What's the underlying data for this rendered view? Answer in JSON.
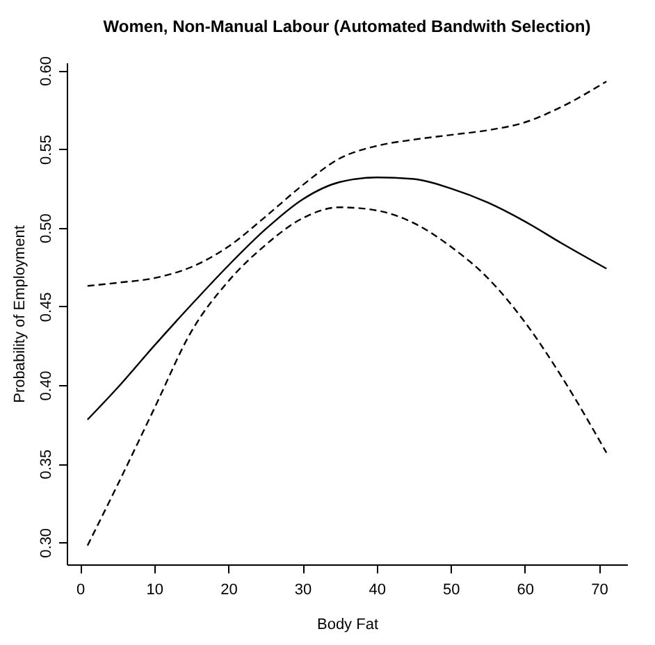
{
  "chart_data": {
    "type": "line",
    "title": "Women, Non-Manual Labour (Automated Bandwith Selection)",
    "xlabel": "Body Fat",
    "ylabel": "Probability of Employment",
    "x": [
      1,
      5,
      10,
      15,
      20,
      25,
      30,
      35,
      40,
      45,
      50,
      55,
      60,
      65,
      71
    ],
    "series": [
      {
        "color": "#000000",
        "line_style": "solid",
        "values": [
          0.378,
          0.398,
          0.425,
          0.451,
          0.476,
          0.499,
          0.518,
          0.529,
          0.532,
          0.531,
          0.525,
          0.516,
          0.504,
          0.49,
          0.474
        ]
      },
      {
        "color": "#000000",
        "line_style": "dashed",
        "values": [
          0.463,
          0.465,
          0.468,
          0.475,
          0.488,
          0.507,
          0.527,
          0.544,
          0.552,
          0.556,
          0.559,
          0.562,
          0.567,
          0.577,
          0.593
        ]
      },
      {
        "color": "#000000",
        "line_style": "dashed",
        "values": [
          0.298,
          0.336,
          0.385,
          0.434,
          0.466,
          0.489,
          0.506,
          0.513,
          0.511,
          0.503,
          0.488,
          0.468,
          0.44,
          0.405,
          0.357
        ]
      }
    ],
    "xlim": [
      -1.8,
      73.8
    ],
    "ylim": [
      0.286,
      0.605
    ],
    "xticks": [
      0,
      10,
      20,
      30,
      40,
      50,
      60,
      70
    ],
    "yticks": [
      {
        "value": 0.3,
        "label": "0.30"
      },
      {
        "value": 0.35,
        "label": "0.35"
      },
      {
        "value": 0.4,
        "label": "0.40"
      },
      {
        "value": 0.45,
        "label": "0.45"
      },
      {
        "value": 0.5,
        "label": "0.50"
      },
      {
        "value": 0.55,
        "label": "0.55"
      },
      {
        "value": 0.6,
        "label": "0.60"
      }
    ],
    "grid": false,
    "marker": "none"
  }
}
